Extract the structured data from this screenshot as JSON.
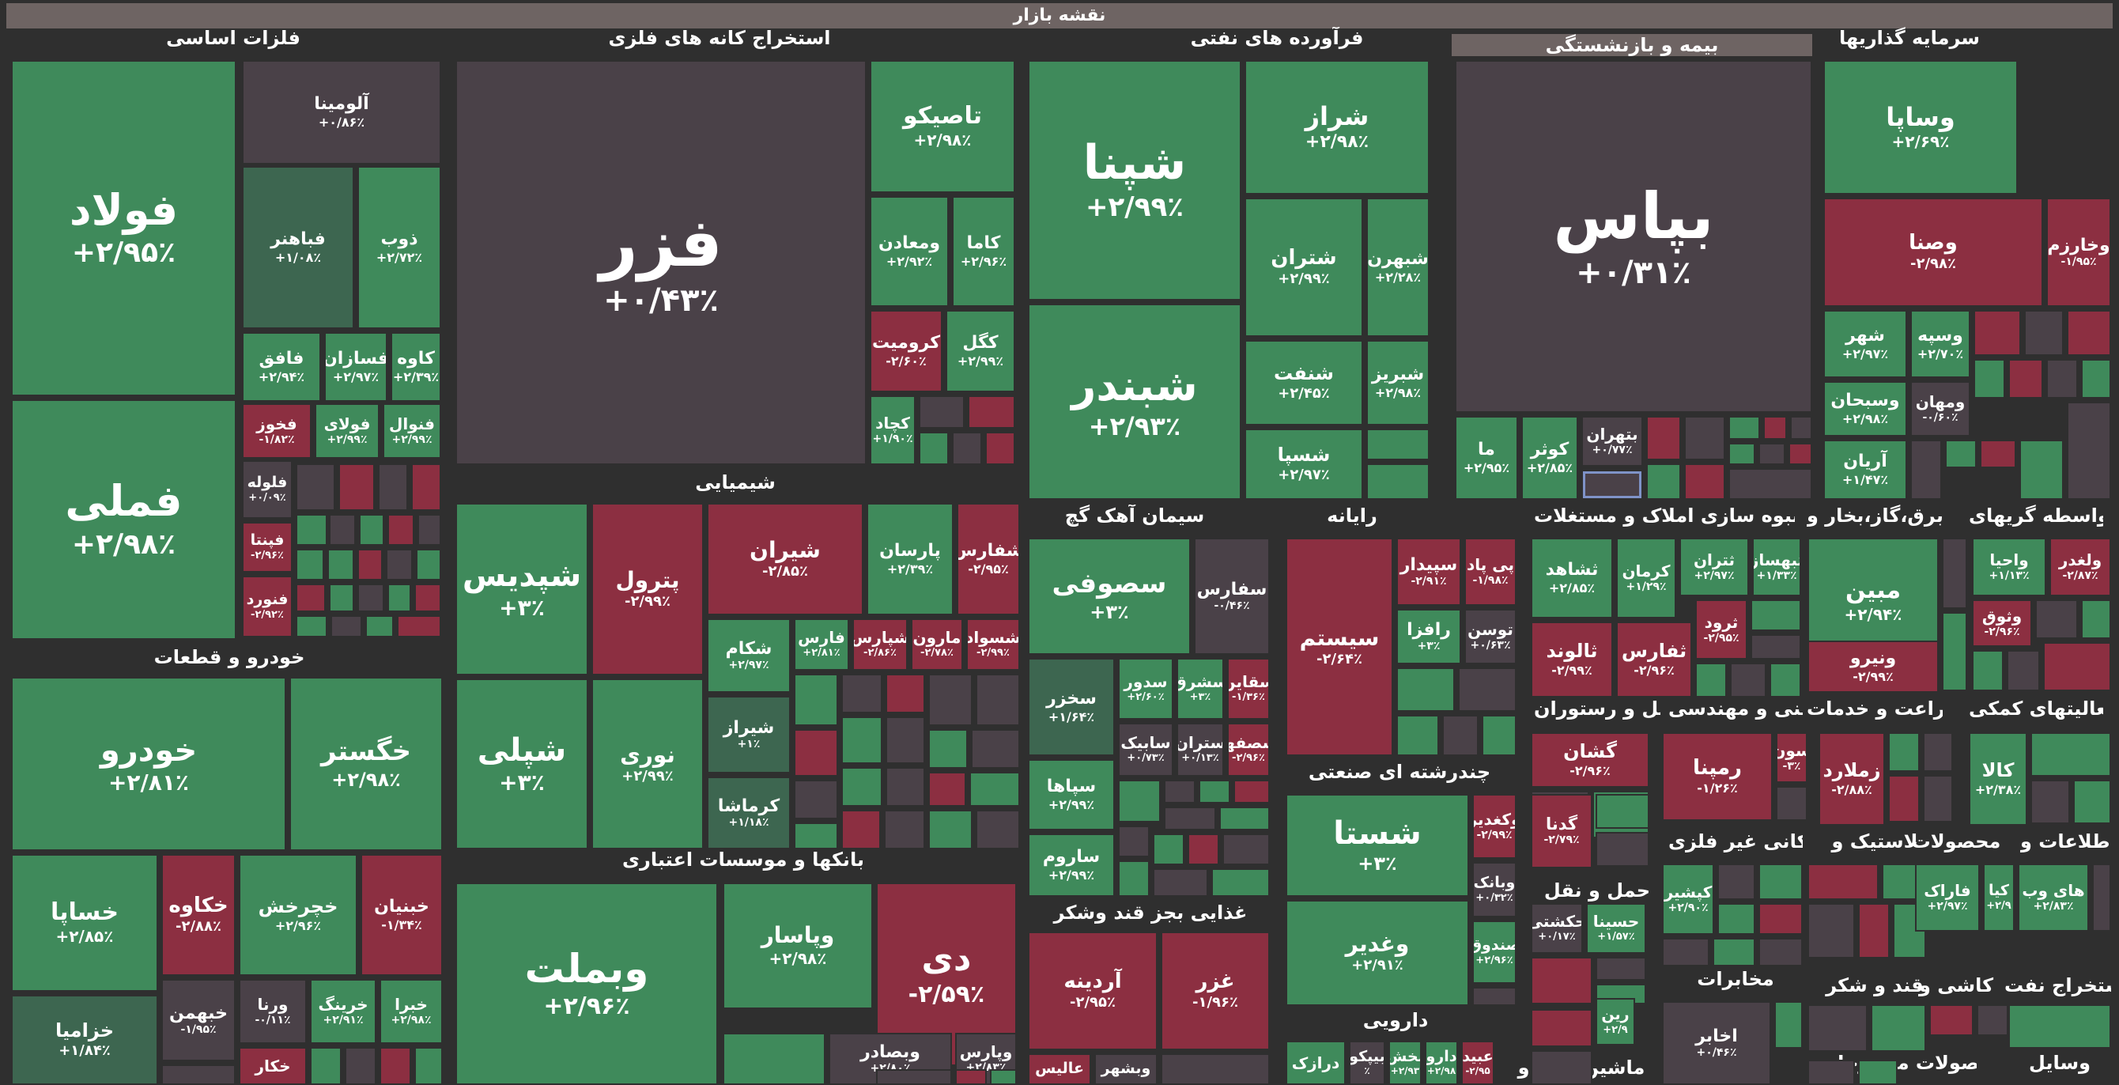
{
  "title": "نقشه بازار",
  "colors": {
    "g": "#3f8a5b",
    "r": "#8c2f41",
    "n": "#4a4148",
    "dg": "#3d6650",
    "background": "#2f2f2f",
    "header_bar": "#6e6463"
  },
  "groups": [
    "فلزات اساسی",
    "استخراج کانه های فلزی",
    "فرآورده های نفتی",
    "بیمه و بازنشستگی",
    "سرمایه گذاریها",
    "شیمیایی",
    "خودرو و قطعات",
    "سیمان آهک گچ",
    "رایانه",
    "انبوه سازی املاک و مستغلات",
    "عرضه برق،گاز،بخار و",
    "واسطه گریهای",
    "چندرشته ای صنعتی",
    "هتل و رستوران",
    "فنی و مهندسی",
    "زراعت و خدمات",
    "فعالیتهای کمکی",
    "بانکها و موسسات اعتباری",
    "غذایی بجز قند وشکر",
    "حمل و نقل",
    "کانی غیر فلزی",
    "لاستیک و",
    "محصولات",
    "اطلاعات و",
    "دارویی",
    "مخابرات",
    "قند و شکر",
    "کاشی و",
    "استخراج نفت",
    "ماشین آلات و",
    "وسایل",
    "محصولات منسوجات"
  ],
  "tiles": [
    {
      "n": "فولاد",
      "p": "+۲/۹۵٪"
    },
    {
      "n": "فملی",
      "p": "+۲/۹۸٪"
    },
    {
      "n": "آلومینا",
      "p": "+۰/۸۶٪"
    },
    {
      "n": "فباهنر",
      "p": "+۱/۰۸٪"
    },
    {
      "n": "ذوب",
      "p": "+۲/۷۲٪"
    },
    {
      "n": "فافق",
      "p": "+۲/۹۴٪"
    },
    {
      "n": "فسازان",
      "p": "+۲/۹۷٪"
    },
    {
      "n": "کاوه",
      "p": "+۲/۳۹٪"
    },
    {
      "n": "فخوز",
      "p": "-۱/۸۲٪"
    },
    {
      "n": "فولای",
      "p": "+۲/۹۹٪"
    },
    {
      "n": "فنوال",
      "p": "+۲/۹۹٪"
    },
    {
      "n": "فلوله",
      "p": "+۰/۰۹٪"
    },
    {
      "n": "فپنتا",
      "p": "-۲/۹۶٪"
    },
    {
      "n": "فنورد",
      "p": "-۲/۹۲٪"
    },
    {
      "n": "فزر",
      "p": "+۰/۴۳٪"
    },
    {
      "n": "تاصیکو",
      "p": "+۲/۹۸٪"
    },
    {
      "n": "ومعادن",
      "p": "+۲/۹۲٪"
    },
    {
      "n": "کاما",
      "p": "+۲/۹۶٪"
    },
    {
      "n": "کرومیت",
      "p": "-۲/۶۰٪"
    },
    {
      "n": "کگل",
      "p": "+۲/۹۹٪"
    },
    {
      "n": "کچاد",
      "p": "+۱/۹۰٪"
    },
    {
      "n": "شپنا",
      "p": "+۲/۹۹٪"
    },
    {
      "n": "شبندر",
      "p": "+۲/۹۳٪"
    },
    {
      "n": "شراز",
      "p": "+۲/۹۸٪"
    },
    {
      "n": "شتران",
      "p": "+۲/۹۹٪"
    },
    {
      "n": "شبهرن",
      "p": "+۲/۲۸٪"
    },
    {
      "n": "شنفت",
      "p": "+۲/۴۵٪"
    },
    {
      "n": "شبریز",
      "p": "+۲/۹۸٪"
    },
    {
      "n": "شسپا",
      "p": "+۲/۹۷٪"
    },
    {
      "n": "بپاس",
      "p": "+۰/۳۱٪"
    },
    {
      "n": "ما",
      "p": "+۲/۹۵٪"
    },
    {
      "n": "کوثر",
      "p": "+۲/۸۵٪"
    },
    {
      "n": "بتهران",
      "p": "+۰/۷۷٪"
    },
    {
      "n": "وساپا",
      "p": "+۲/۶۹٪"
    },
    {
      "n": "وصنا",
      "p": "-۲/۹۸٪"
    },
    {
      "n": "وخارزم",
      "p": "-۱/۹۵٪"
    },
    {
      "n": "شهر",
      "p": "+۲/۹۷٪"
    },
    {
      "n": "وسپه",
      "p": "+۲/۷۰٪"
    },
    {
      "n": "وسبحان",
      "p": "+۲/۹۸٪"
    },
    {
      "n": "ومهان",
      "p": "-۰/۶۰٪"
    },
    {
      "n": "آریان",
      "p": "+۱/۴۷٪"
    },
    {
      "n": "شپدیس",
      "p": "+۳٪"
    },
    {
      "n": "شپلی",
      "p": "+۳٪"
    },
    {
      "n": "پترول",
      "p": "-۲/۹۹٪"
    },
    {
      "n": "نوری",
      "p": "+۲/۹۹٪"
    },
    {
      "n": "شیران",
      "p": "-۲/۸۵٪"
    },
    {
      "n": "پارسان",
      "p": "+۲/۳۹٪"
    },
    {
      "n": "شفارس",
      "p": "-۲/۹۵٪"
    },
    {
      "n": "شکام",
      "p": "+۲/۹۷٪"
    },
    {
      "n": "فارس",
      "p": "+۲/۸۱٪"
    },
    {
      "n": "شپارس",
      "p": "-۲/۸۶٪"
    },
    {
      "n": "مارون",
      "p": "-۲/۷۸٪"
    },
    {
      "n": "شسواد",
      "p": "-۲/۹۹٪"
    },
    {
      "n": "شیراز",
      "p": "+۱٪"
    },
    {
      "n": "کرماشا",
      "p": "+۱/۱۸٪"
    },
    {
      "n": "خودرو",
      "p": "+۲/۸۱٪"
    },
    {
      "n": "خگستر",
      "p": "+۲/۹۸٪"
    },
    {
      "n": "خساپا",
      "p": "+۲/۸۵٪"
    },
    {
      "n": "خکاوه",
      "p": "-۲/۸۸٪"
    },
    {
      "n": "خچرخش",
      "p": "+۲/۹۶٪"
    },
    {
      "n": "خبنیان",
      "p": "-۱/۳۴٪"
    },
    {
      "n": "خزامیا",
      "p": "+۱/۸۴٪"
    },
    {
      "n": "خبهمن",
      "p": "-۱/۹۵٪"
    },
    {
      "n": "ورنا",
      "p": "-۰/۱۱٪"
    },
    {
      "n": "خرینگ",
      "p": "+۲/۹۱٪"
    },
    {
      "n": "خبرا",
      "p": "+۲/۹۸٪"
    },
    {
      "n": "خکار",
      "p": ""
    },
    {
      "n": "سصوفی",
      "p": "+۳٪"
    },
    {
      "n": "سفارس",
      "p": "-۰/۴۶٪"
    },
    {
      "n": "سخزر",
      "p": "+۱/۶۴٪"
    },
    {
      "n": "سدور",
      "p": "+۲/۶۰٪"
    },
    {
      "n": "سشرق",
      "p": "+۳٪"
    },
    {
      "n": "سقاین",
      "p": "-۱/۳۶٪"
    },
    {
      "n": "سابیک",
      "p": "+۰/۷۳٪"
    },
    {
      "n": "ستران",
      "p": "+۰/۱۳٪"
    },
    {
      "n": "سصفها",
      "p": "-۲/۹۶٪"
    },
    {
      "n": "سپاها",
      "p": "+۲/۹۹٪"
    },
    {
      "n": "ساروم",
      "p": "+۲/۹۹٪"
    },
    {
      "n": "سیستم",
      "p": "-۲/۶۴٪"
    },
    {
      "n": "سپیدار",
      "p": "-۲/۹۱٪"
    },
    {
      "n": "پی پاد",
      "p": "-۱/۹۸٪"
    },
    {
      "n": "رافزا",
      "p": "+۳٪"
    },
    {
      "n": "توسن",
      "p": "+۰/۶۳٪"
    },
    {
      "n": "شستا",
      "p": "+۳٪"
    },
    {
      "n": "وکغدیر",
      "p": "-۲/۹۹٪"
    },
    {
      "n": "وبانک",
      "p": "+۰/۳۲٪"
    },
    {
      "n": "وغدیر",
      "p": "+۲/۹۱٪"
    },
    {
      "n": "صندوق",
      "p": "+۲/۹۶٪"
    },
    {
      "n": "ثشاهد",
      "p": "+۲/۸۵٪"
    },
    {
      "n": "کرمان",
      "p": "+۱/۲۹٪"
    },
    {
      "n": "ثتران",
      "p": "+۲/۹۷٪"
    },
    {
      "n": "ثبهساز",
      "p": "+۱/۳۳٪"
    },
    {
      "n": "ثالوند",
      "p": "-۲/۹۹٪"
    },
    {
      "n": "ثفارس",
      "p": "-۲/۹۶٪"
    },
    {
      "n": "ثرود",
      "p": "-۲/۹۵٪"
    },
    {
      "n": "مبین",
      "p": "+۲/۹۴٪"
    },
    {
      "n": "ونیرو",
      "p": "-۲/۹۹٪"
    },
    {
      "n": "واحیا",
      "p": "+۱/۱۳٪"
    },
    {
      "n": "ولغدر",
      "p": "-۲/۸۷٪"
    },
    {
      "n": "وثوق",
      "p": "-۲/۹۶٪"
    },
    {
      "n": "گشان",
      "p": "-۲/۹۶٪"
    },
    {
      "n": "رمپنا",
      "p": "-۱/۲۶٪"
    },
    {
      "n": "سون",
      "p": "-۳٪"
    },
    {
      "n": "زملارد",
      "p": "-۲/۸۸٪"
    },
    {
      "n": "کالا",
      "p": "+۲/۳۸٪"
    },
    {
      "n": "وبملت",
      "p": "+۲/۹۶٪"
    },
    {
      "n": "وپاسار",
      "p": "+۲/۹۸٪"
    },
    {
      "n": "دی",
      "p": "-۲/۵۹٪"
    },
    {
      "n": "وبصادر",
      "p": "+۲/۸۰٪"
    },
    {
      "n": "وپارس",
      "p": "+۲/۸۳٪"
    },
    {
      "n": "آردینه",
      "p": "-۲/۹۵٪"
    },
    {
      "n": "غزر",
      "p": "-۱/۹۶٪"
    },
    {
      "n": "عالیس",
      "p": ""
    },
    {
      "n": "وبشهر",
      "p": ""
    },
    {
      "n": "گدنا",
      "p": "-۲/۷۹٪"
    },
    {
      "n": "حکشتی",
      "p": "+۰/۱۷٪"
    },
    {
      "n": "حسینا",
      "p": "+۱/۵۷٪"
    },
    {
      "n": "کپشیر",
      "p": "+۲/۹۰٪"
    },
    {
      "n": "فاراک",
      "p": "+۲/۹۷٪"
    },
    {
      "n": "کیا",
      "p": "+۲/۹"
    },
    {
      "n": "های وب",
      "p": "+۲/۸۳٪"
    },
    {
      "n": "درازک",
      "p": ""
    },
    {
      "n": "بیپکو",
      "p": "٪"
    },
    {
      "n": "بخش",
      "p": "+۲/۹۳"
    },
    {
      "n": "دارو",
      "p": "+۲/۹۸"
    },
    {
      "n": "عبید",
      "p": "-۲/۹۵"
    },
    {
      "n": "اخابر",
      "p": "+۰/۴۶٪"
    },
    {
      "n": "رین",
      "p": "+۲/۹"
    }
  ]
}
